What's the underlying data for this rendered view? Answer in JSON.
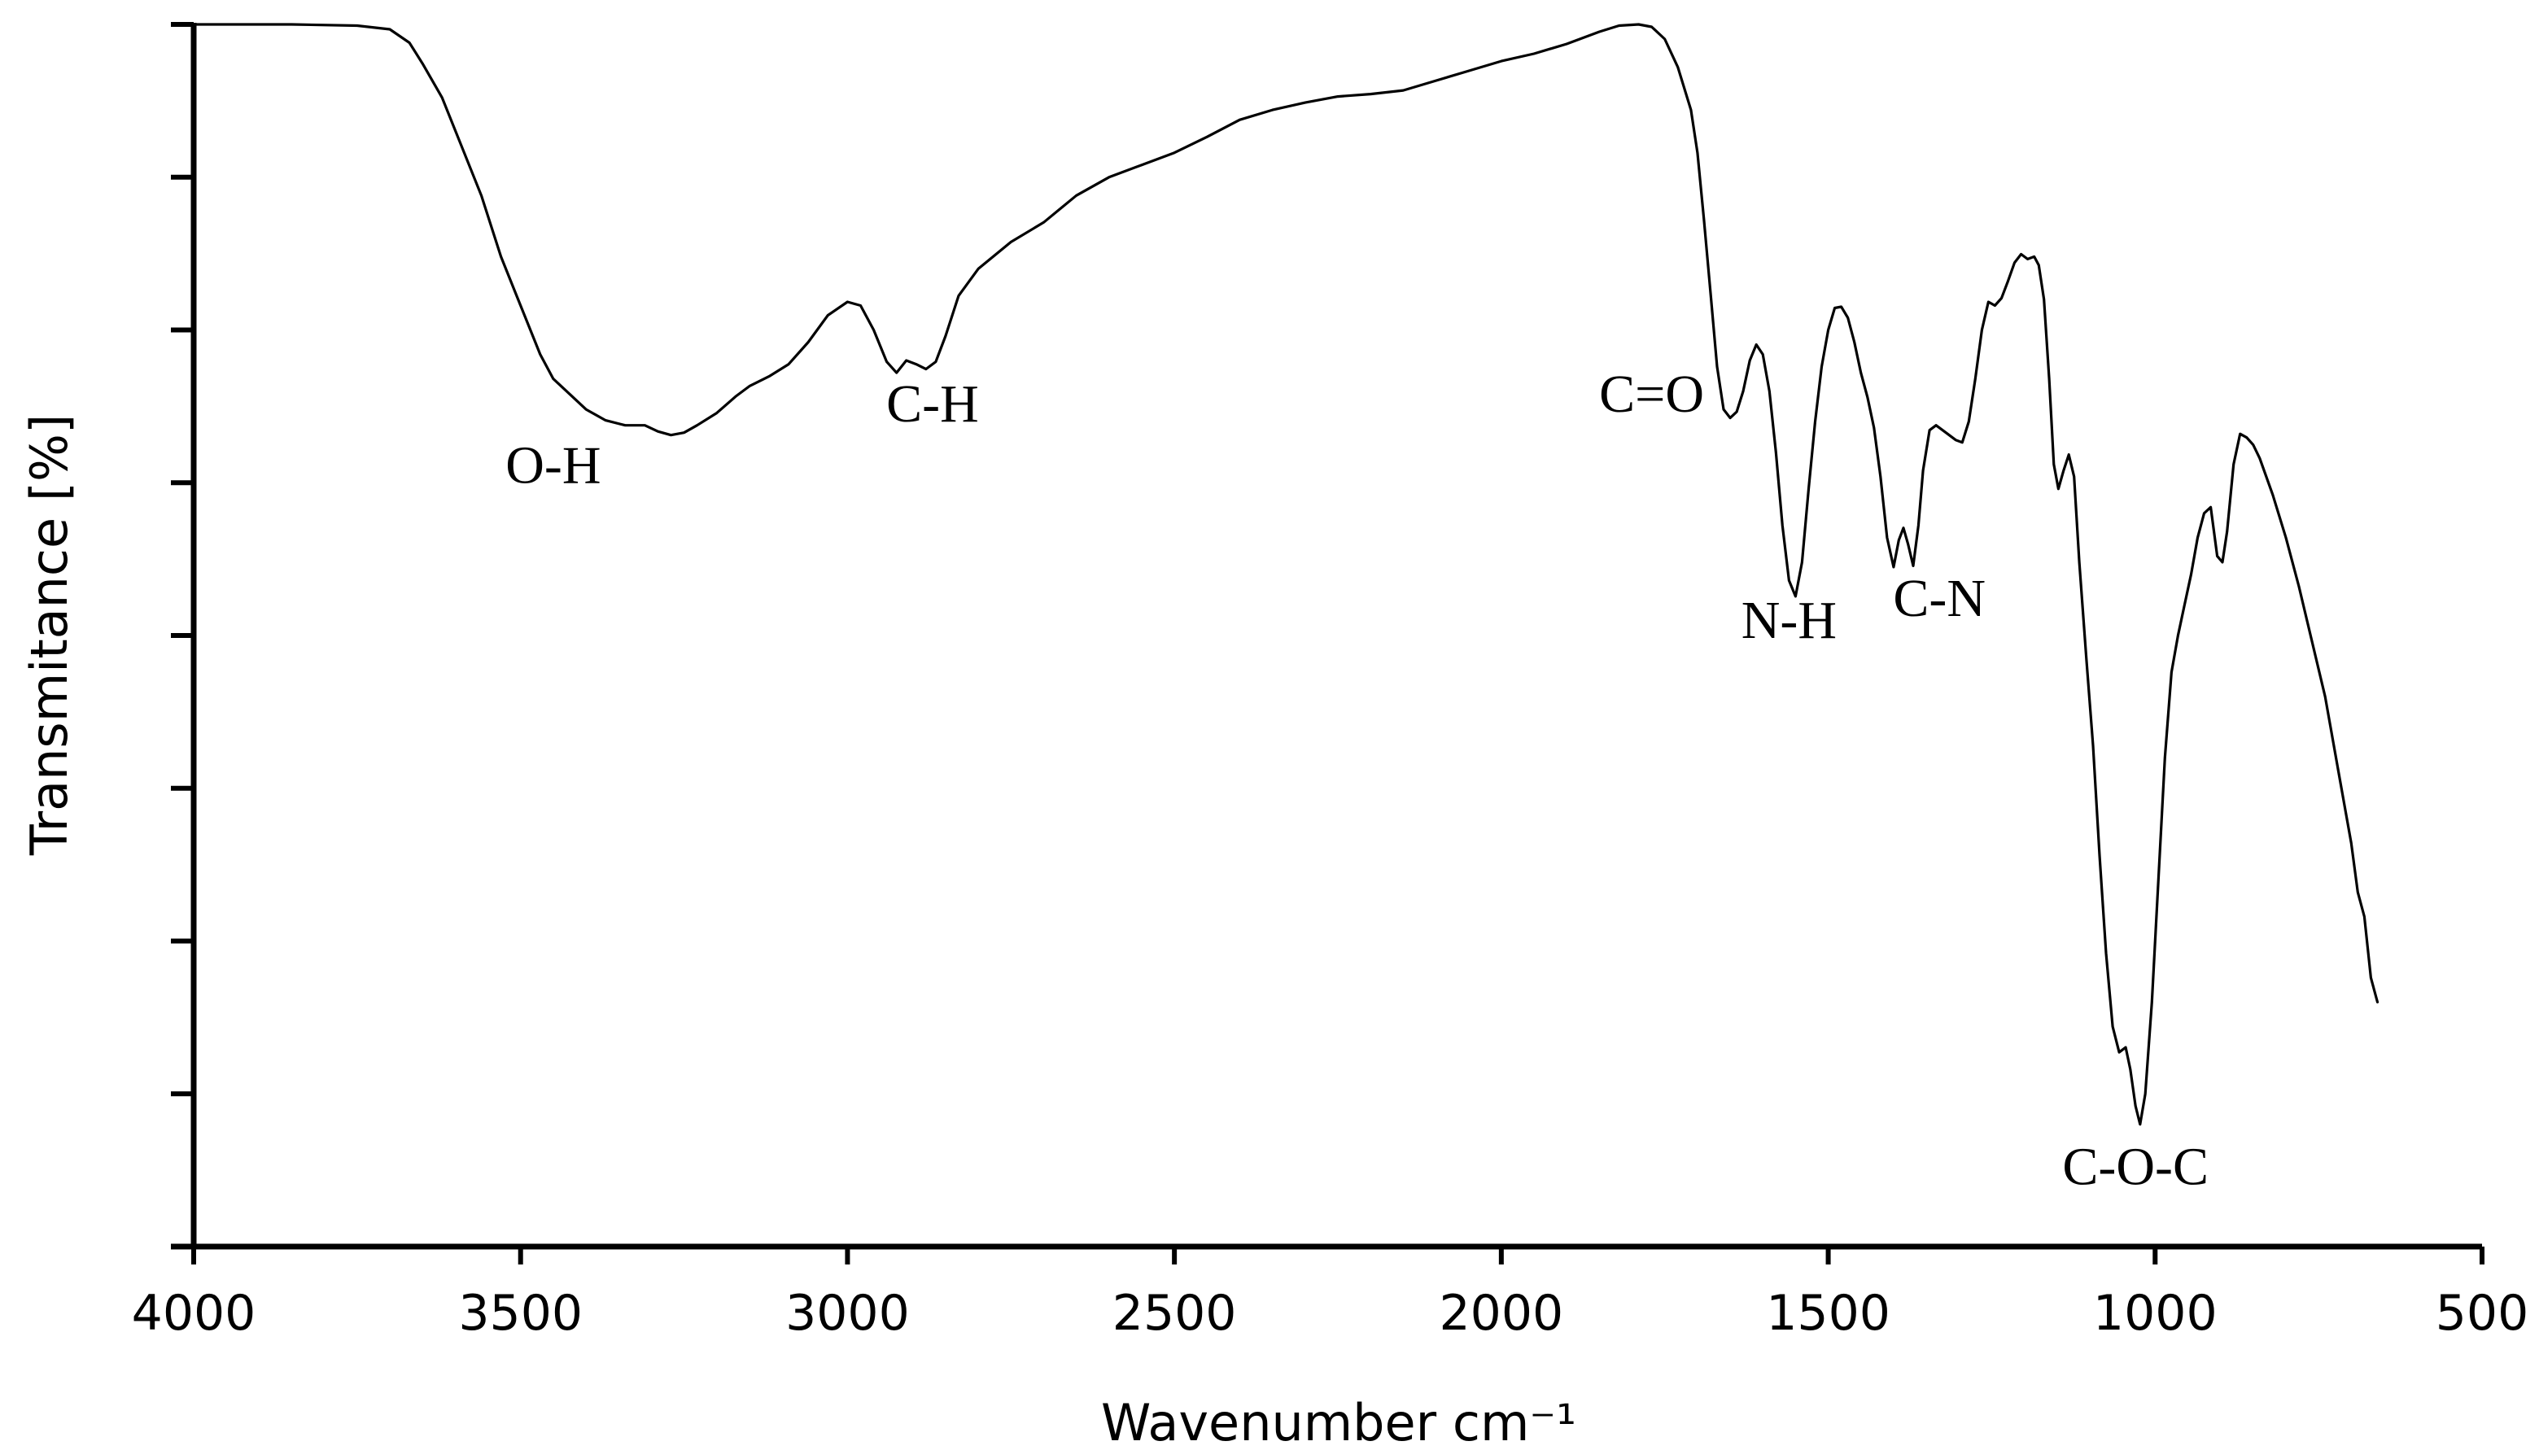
{
  "chart_data": {
    "type": "line",
    "title": "",
    "xlabel": "Wavenumber cm⁻¹",
    "ylabel": "Transmitance [%]",
    "xlim": [
      4000,
      500
    ],
    "x_reversed": true,
    "ylim": [
      0,
      100
    ],
    "y_tick_count": 9,
    "y_tick_labels_shown": false,
    "grid": false,
    "x_ticks": [
      {
        "value": 4000,
        "label": "4000"
      },
      {
        "value": 3500,
        "label": "3500"
      },
      {
        "value": 3000,
        "label": "3000"
      },
      {
        "value": 2500,
        "label": "2500"
      },
      {
        "value": 2000,
        "label": "2000"
      },
      {
        "value": 1500,
        "label": "1500"
      },
      {
        "value": 1000,
        "label": "1000"
      },
      {
        "value": 500,
        "label": "500"
      }
    ],
    "series": [
      {
        "color": "#000000",
        "points": [
          [
            4000,
            100
          ],
          [
            3850,
            100
          ],
          [
            3750,
            99.9
          ],
          [
            3700,
            99.6
          ],
          [
            3670,
            98.5
          ],
          [
            3650,
            96.8
          ],
          [
            3620,
            94
          ],
          [
            3590,
            90
          ],
          [
            3560,
            86
          ],
          [
            3530,
            81
          ],
          [
            3500,
            77
          ],
          [
            3470,
            73
          ],
          [
            3450,
            71
          ],
          [
            3430,
            70
          ],
          [
            3400,
            68.5
          ],
          [
            3370,
            67.6
          ],
          [
            3340,
            67.2
          ],
          [
            3310,
            67.2
          ],
          [
            3290,
            66.7
          ],
          [
            3270,
            66.4
          ],
          [
            3250,
            66.6
          ],
          [
            3230,
            67.2
          ],
          [
            3200,
            68.2
          ],
          [
            3170,
            69.6
          ],
          [
            3150,
            70.4
          ],
          [
            3120,
            71.2
          ],
          [
            3090,
            72.2
          ],
          [
            3060,
            74
          ],
          [
            3030,
            76.2
          ],
          [
            3000,
            77.3
          ],
          [
            2980,
            77
          ],
          [
            2960,
            75
          ],
          [
            2940,
            72.4
          ],
          [
            2925,
            71.5
          ],
          [
            2910,
            72.5
          ],
          [
            2895,
            72.2
          ],
          [
            2880,
            71.8
          ],
          [
            2865,
            72.4
          ],
          [
            2850,
            74.5
          ],
          [
            2830,
            77.8
          ],
          [
            2800,
            80
          ],
          [
            2750,
            82.2
          ],
          [
            2700,
            83.8
          ],
          [
            2650,
            86
          ],
          [
            2600,
            87.5
          ],
          [
            2550,
            88.5
          ],
          [
            2500,
            89.5
          ],
          [
            2450,
            90.8
          ],
          [
            2400,
            92.2
          ],
          [
            2350,
            93
          ],
          [
            2300,
            93.6
          ],
          [
            2250,
            94.1
          ],
          [
            2200,
            94.3
          ],
          [
            2150,
            94.6
          ],
          [
            2100,
            95.4
          ],
          [
            2050,
            96.2
          ],
          [
            2000,
            97
          ],
          [
            1950,
            97.6
          ],
          [
            1900,
            98.4
          ],
          [
            1850,
            99.4
          ],
          [
            1820,
            99.9
          ],
          [
            1790,
            100
          ],
          [
            1770,
            99.8
          ],
          [
            1750,
            98.8
          ],
          [
            1730,
            96.5
          ],
          [
            1710,
            93
          ],
          [
            1700,
            89.5
          ],
          [
            1690,
            84
          ],
          [
            1680,
            78
          ],
          [
            1670,
            72
          ],
          [
            1660,
            68.5
          ],
          [
            1650,
            67.8
          ],
          [
            1640,
            68.3
          ],
          [
            1630,
            70
          ],
          [
            1620,
            72.5
          ],
          [
            1610,
            73.8
          ],
          [
            1600,
            73
          ],
          [
            1590,
            70
          ],
          [
            1580,
            65
          ],
          [
            1570,
            59
          ],
          [
            1560,
            54.5
          ],
          [
            1550,
            53.2
          ],
          [
            1540,
            56
          ],
          [
            1530,
            62
          ],
          [
            1520,
            67.5
          ],
          [
            1510,
            72
          ],
          [
            1500,
            75
          ],
          [
            1490,
            76.8
          ],
          [
            1480,
            76.9
          ],
          [
            1470,
            76
          ],
          [
            1460,
            74
          ],
          [
            1450,
            71.5
          ],
          [
            1440,
            69.5
          ],
          [
            1430,
            67
          ],
          [
            1420,
            63
          ],
          [
            1410,
            58
          ],
          [
            1400,
            55.6
          ],
          [
            1392,
            57.8
          ],
          [
            1385,
            58.8
          ],
          [
            1378,
            57.5
          ],
          [
            1370,
            55.7
          ],
          [
            1362,
            59
          ],
          [
            1355,
            63.5
          ],
          [
            1345,
            66.8
          ],
          [
            1335,
            67.2
          ],
          [
            1320,
            66.6
          ],
          [
            1305,
            66
          ],
          [
            1295,
            65.8
          ],
          [
            1285,
            67.5
          ],
          [
            1275,
            71
          ],
          [
            1265,
            75
          ],
          [
            1255,
            77.3
          ],
          [
            1245,
            77
          ],
          [
            1235,
            77.6
          ],
          [
            1225,
            79
          ],
          [
            1215,
            80.5
          ],
          [
            1205,
            81.2
          ],
          [
            1195,
            80.8
          ],
          [
            1185,
            81
          ],
          [
            1178,
            80.3
          ],
          [
            1170,
            77.5
          ],
          [
            1162,
            71
          ],
          [
            1155,
            64
          ],
          [
            1148,
            62
          ],
          [
            1140,
            63.5
          ],
          [
            1132,
            64.8
          ],
          [
            1124,
            63
          ],
          [
            1116,
            56
          ],
          [
            1105,
            48
          ],
          [
            1095,
            41
          ],
          [
            1085,
            32
          ],
          [
            1075,
            24
          ],
          [
            1065,
            18
          ],
          [
            1055,
            15.9
          ],
          [
            1045,
            16.3
          ],
          [
            1038,
            14.5
          ],
          [
            1030,
            11.5
          ],
          [
            1023,
            10
          ],
          [
            1015,
            12.5
          ],
          [
            1005,
            20
          ],
          [
            995,
            30
          ],
          [
            985,
            40
          ],
          [
            975,
            47
          ],
          [
            965,
            50
          ],
          [
            955,
            52.5
          ],
          [
            945,
            55
          ],
          [
            935,
            58
          ],
          [
            925,
            60
          ],
          [
            915,
            60.5
          ],
          [
            905,
            56.5
          ],
          [
            897,
            56
          ],
          [
            890,
            58.5
          ],
          [
            880,
            64
          ],
          [
            870,
            66.5
          ],
          [
            860,
            66.2
          ],
          [
            850,
            65.6
          ],
          [
            840,
            64.5
          ],
          [
            820,
            61.5
          ],
          [
            800,
            58
          ],
          [
            780,
            54
          ],
          [
            760,
            49.5
          ],
          [
            740,
            45
          ],
          [
            720,
            39
          ],
          [
            700,
            33
          ],
          [
            690,
            29
          ],
          [
            680,
            27
          ],
          [
            670,
            22
          ],
          [
            660,
            20
          ]
        ]
      }
    ],
    "annotations": [
      {
        "text": "O-H",
        "x": 3450,
        "y": 62.5
      },
      {
        "text": "C-H",
        "x": 2870,
        "y": 67.5
      },
      {
        "text": "C=O",
        "x": 1770,
        "y": 68.3
      },
      {
        "text": "N-H",
        "x": 1560,
        "y": 49.8
      },
      {
        "text": "C-N",
        "x": 1330,
        "y": 51.6
      },
      {
        "text": "C-O-C",
        "x": 1030,
        "y": 5.1
      }
    ]
  }
}
